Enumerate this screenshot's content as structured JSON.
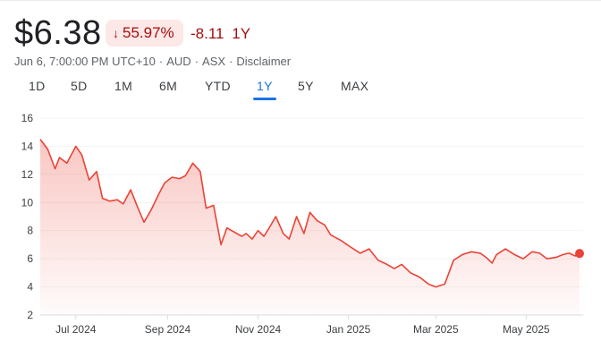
{
  "quote": {
    "price": "$6.38",
    "change_pct": "55.97%",
    "change_abs": "-8.11",
    "period": "1Y",
    "colors": {
      "down": "#a50e0e",
      "down_bg": "#fce8e6",
      "accent": "#1a73e8",
      "line": "#ea4335"
    },
    "meta": {
      "timestamp": "Jun 6, 7:00:00 PM UTC+10",
      "currency": "AUD",
      "exchange": "ASX",
      "disclaimer": "Disclaimer"
    }
  },
  "tabs": [
    {
      "label": "1D",
      "active": false
    },
    {
      "label": "5D",
      "active": false
    },
    {
      "label": "1M",
      "active": false
    },
    {
      "label": "6M",
      "active": false
    },
    {
      "label": "YTD",
      "active": false
    },
    {
      "label": "1Y",
      "active": true
    },
    {
      "label": "5Y",
      "active": false
    },
    {
      "label": "MAX",
      "active": false
    }
  ],
  "chart_data": {
    "type": "area",
    "title": "",
    "xlabel": "",
    "ylabel": "",
    "ylim": [
      2,
      16
    ],
    "y_ticks": [
      "16",
      "14",
      "12",
      "10",
      "8",
      "6",
      "4",
      "2"
    ],
    "x_ticks": [
      "Jul 2024",
      "Sep 2024",
      "Nov 2024",
      "Jan 2025",
      "Mar 2025",
      "May 2025"
    ],
    "grid": true,
    "legend": "none",
    "x": [
      "2024-06-07",
      "2024-06-12",
      "2024-06-17",
      "2024-06-20",
      "2024-06-25",
      "2024-07-01",
      "2024-07-05",
      "2024-07-10",
      "2024-07-15",
      "2024-07-19",
      "2024-07-24",
      "2024-07-29",
      "2024-08-02",
      "2024-08-07",
      "2024-08-12",
      "2024-08-16",
      "2024-08-21",
      "2024-08-26",
      "2024-08-30",
      "2024-09-04",
      "2024-09-09",
      "2024-09-13",
      "2024-09-18",
      "2024-09-23",
      "2024-09-27",
      "2024-10-02",
      "2024-10-07",
      "2024-10-11",
      "2024-10-16",
      "2024-10-21",
      "2024-10-24",
      "2024-10-28",
      "2024-11-01",
      "2024-11-05",
      "2024-11-08",
      "2024-11-13",
      "2024-11-18",
      "2024-11-22",
      "2024-11-27",
      "2024-12-02",
      "2024-12-06",
      "2024-12-11",
      "2024-12-16",
      "2024-12-20",
      "2024-12-27",
      "2025-01-03",
      "2025-01-09",
      "2025-01-15",
      "2025-01-21",
      "2025-01-27",
      "2025-02-01",
      "2025-02-06",
      "2025-02-12",
      "2025-02-18",
      "2025-02-24",
      "2025-03-01",
      "2025-03-07",
      "2025-03-13",
      "2025-03-19",
      "2025-03-25",
      "2025-03-31",
      "2025-04-04",
      "2025-04-08",
      "2025-04-11",
      "2025-04-17",
      "2025-04-23",
      "2025-04-29",
      "2025-05-05",
      "2025-05-10",
      "2025-05-15",
      "2025-05-21",
      "2025-05-26",
      "2025-05-30",
      "2025-06-03",
      "2025-06-06"
    ],
    "series": [
      {
        "values": [
          14.5,
          13.8,
          12.4,
          13.2,
          12.8,
          14.0,
          13.4,
          11.6,
          12.2,
          10.3,
          10.1,
          10.2,
          9.9,
          10.9,
          9.6,
          8.6,
          9.5,
          10.6,
          11.4,
          11.8,
          11.7,
          11.9,
          12.8,
          12.2,
          9.6,
          9.8,
          7.0,
          8.2,
          7.9,
          7.6,
          7.8,
          7.4,
          8.0,
          7.6,
          8.1,
          9.0,
          7.8,
          7.4,
          9.0,
          7.8,
          9.3,
          8.7,
          8.4,
          7.7,
          7.3,
          6.8,
          6.4,
          6.7,
          5.9,
          5.6,
          5.3,
          5.6,
          5.0,
          4.7,
          4.2,
          4.0,
          4.2,
          5.9,
          6.3,
          6.5,
          6.4,
          6.1,
          5.7,
          6.3,
          6.7,
          6.3,
          6.0,
          6.5,
          6.4,
          6.0,
          6.1,
          6.3,
          6.4,
          6.2,
          6.38
        ]
      }
    ]
  }
}
